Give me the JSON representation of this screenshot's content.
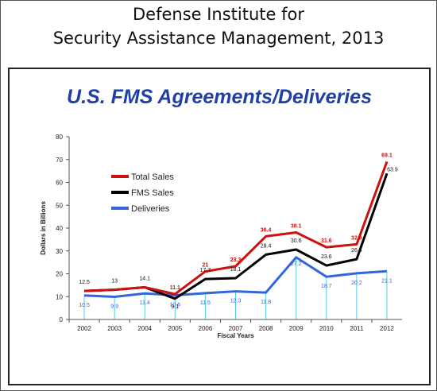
{
  "header": {
    "line1": "Defense Institute for",
    "line2": "Security Assistance Management, 2013"
  },
  "chart_data": {
    "type": "line",
    "title": "U.S. FMS Agreements/Deliveries",
    "xlabel": "Fiscal Years",
    "ylabel": "Dollars in Billions",
    "ylim": [
      0,
      80
    ],
    "yticks": [
      0,
      10,
      20,
      30,
      40,
      50,
      60,
      70,
      80
    ],
    "grid": false,
    "legend_placement": "upper-left",
    "categories": [
      "2002",
      "2003",
      "2004",
      "2005",
      "2006",
      "2007",
      "2008",
      "2009",
      "2010",
      "2011",
      "2012"
    ],
    "series": [
      {
        "name": "Total Sales",
        "color": "#cc1111",
        "values": [
          12.5,
          13,
          14.1,
          11.1,
          21,
          23.3,
          36.4,
          38.1,
          31.6,
          32.9,
          69.1
        ],
        "labels": [
          "",
          "",
          "",
          "11.1",
          "21",
          "23.3",
          "36.4",
          "38.1",
          "31.6",
          "32.9",
          "69.1"
        ]
      },
      {
        "name": "FMS Sales",
        "color": "#000000",
        "values": [
          12.5,
          13,
          14.1,
          9.1,
          17.7,
          18.1,
          28.4,
          30.6,
          23.6,
          26.4,
          63.9
        ],
        "labels": [
          "12.5",
          "13",
          "14.1",
          "9.1",
          "17.7",
          "18.1",
          "28.4",
          "30.6",
          "23.6",
          "26.4",
          "63.9"
        ]
      },
      {
        "name": "Deliveries",
        "color": "#3366dd",
        "values": [
          10.5,
          9.9,
          11.4,
          10.6,
          11.5,
          12.3,
          11.8,
          27.2,
          18.7,
          20.2,
          21.1
        ],
        "labels": [
          "10.5",
          "9.9",
          "11.4",
          "10.6",
          "11.5",
          "12.3",
          "11.8",
          "27.2",
          "18.7",
          "20.2",
          "21.1"
        ]
      }
    ]
  }
}
